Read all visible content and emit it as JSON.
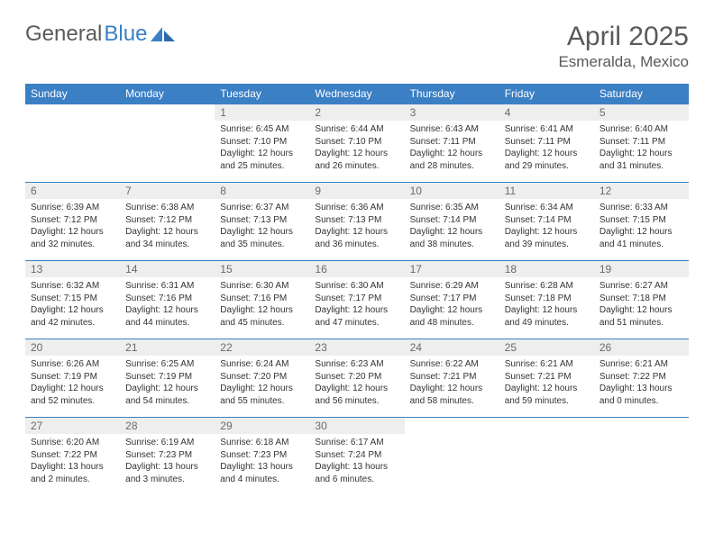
{
  "brand": {
    "part1": "General",
    "part2": "Blue"
  },
  "title": "April 2025",
  "location": "Esmeralda, Mexico",
  "colors": {
    "header_bg": "#3b7fc4",
    "header_text": "#ffffff",
    "daynum_bg": "#eeeeee",
    "daynum_text": "#6a6a6a",
    "body_text": "#333333",
    "title_text": "#5a5a5a",
    "border": "#3b7fc4",
    "page_bg": "#ffffff"
  },
  "typography": {
    "title_fontsize": 30,
    "location_fontsize": 17,
    "dayheader_fontsize": 12,
    "daynum_fontsize": 12,
    "cell_fontsize": 10
  },
  "day_headers": [
    "Sunday",
    "Monday",
    "Tuesday",
    "Wednesday",
    "Thursday",
    "Friday",
    "Saturday"
  ],
  "weeks": [
    [
      null,
      null,
      {
        "n": "1",
        "sunrise": "6:45 AM",
        "sunset": "7:10 PM",
        "dl": "12 hours and 25 minutes."
      },
      {
        "n": "2",
        "sunrise": "6:44 AM",
        "sunset": "7:10 PM",
        "dl": "12 hours and 26 minutes."
      },
      {
        "n": "3",
        "sunrise": "6:43 AM",
        "sunset": "7:11 PM",
        "dl": "12 hours and 28 minutes."
      },
      {
        "n": "4",
        "sunrise": "6:41 AM",
        "sunset": "7:11 PM",
        "dl": "12 hours and 29 minutes."
      },
      {
        "n": "5",
        "sunrise": "6:40 AM",
        "sunset": "7:11 PM",
        "dl": "12 hours and 31 minutes."
      }
    ],
    [
      {
        "n": "6",
        "sunrise": "6:39 AM",
        "sunset": "7:12 PM",
        "dl": "12 hours and 32 minutes."
      },
      {
        "n": "7",
        "sunrise": "6:38 AM",
        "sunset": "7:12 PM",
        "dl": "12 hours and 34 minutes."
      },
      {
        "n": "8",
        "sunrise": "6:37 AM",
        "sunset": "7:13 PM",
        "dl": "12 hours and 35 minutes."
      },
      {
        "n": "9",
        "sunrise": "6:36 AM",
        "sunset": "7:13 PM",
        "dl": "12 hours and 36 minutes."
      },
      {
        "n": "10",
        "sunrise": "6:35 AM",
        "sunset": "7:14 PM",
        "dl": "12 hours and 38 minutes."
      },
      {
        "n": "11",
        "sunrise": "6:34 AM",
        "sunset": "7:14 PM",
        "dl": "12 hours and 39 minutes."
      },
      {
        "n": "12",
        "sunrise": "6:33 AM",
        "sunset": "7:15 PM",
        "dl": "12 hours and 41 minutes."
      }
    ],
    [
      {
        "n": "13",
        "sunrise": "6:32 AM",
        "sunset": "7:15 PM",
        "dl": "12 hours and 42 minutes."
      },
      {
        "n": "14",
        "sunrise": "6:31 AM",
        "sunset": "7:16 PM",
        "dl": "12 hours and 44 minutes."
      },
      {
        "n": "15",
        "sunrise": "6:30 AM",
        "sunset": "7:16 PM",
        "dl": "12 hours and 45 minutes."
      },
      {
        "n": "16",
        "sunrise": "6:30 AM",
        "sunset": "7:17 PM",
        "dl": "12 hours and 47 minutes."
      },
      {
        "n": "17",
        "sunrise": "6:29 AM",
        "sunset": "7:17 PM",
        "dl": "12 hours and 48 minutes."
      },
      {
        "n": "18",
        "sunrise": "6:28 AM",
        "sunset": "7:18 PM",
        "dl": "12 hours and 49 minutes."
      },
      {
        "n": "19",
        "sunrise": "6:27 AM",
        "sunset": "7:18 PM",
        "dl": "12 hours and 51 minutes."
      }
    ],
    [
      {
        "n": "20",
        "sunrise": "6:26 AM",
        "sunset": "7:19 PM",
        "dl": "12 hours and 52 minutes."
      },
      {
        "n": "21",
        "sunrise": "6:25 AM",
        "sunset": "7:19 PM",
        "dl": "12 hours and 54 minutes."
      },
      {
        "n": "22",
        "sunrise": "6:24 AM",
        "sunset": "7:20 PM",
        "dl": "12 hours and 55 minutes."
      },
      {
        "n": "23",
        "sunrise": "6:23 AM",
        "sunset": "7:20 PM",
        "dl": "12 hours and 56 minutes."
      },
      {
        "n": "24",
        "sunrise": "6:22 AM",
        "sunset": "7:21 PM",
        "dl": "12 hours and 58 minutes."
      },
      {
        "n": "25",
        "sunrise": "6:21 AM",
        "sunset": "7:21 PM",
        "dl": "12 hours and 59 minutes."
      },
      {
        "n": "26",
        "sunrise": "6:21 AM",
        "sunset": "7:22 PM",
        "dl": "13 hours and 0 minutes."
      }
    ],
    [
      {
        "n": "27",
        "sunrise": "6:20 AM",
        "sunset": "7:22 PM",
        "dl": "13 hours and 2 minutes."
      },
      {
        "n": "28",
        "sunrise": "6:19 AM",
        "sunset": "7:23 PM",
        "dl": "13 hours and 3 minutes."
      },
      {
        "n": "29",
        "sunrise": "6:18 AM",
        "sunset": "7:23 PM",
        "dl": "13 hours and 4 minutes."
      },
      {
        "n": "30",
        "sunrise": "6:17 AM",
        "sunset": "7:24 PM",
        "dl": "13 hours and 6 minutes."
      },
      null,
      null,
      null
    ]
  ],
  "labels": {
    "sunrise": "Sunrise:",
    "sunset": "Sunset:",
    "daylight": "Daylight:"
  }
}
